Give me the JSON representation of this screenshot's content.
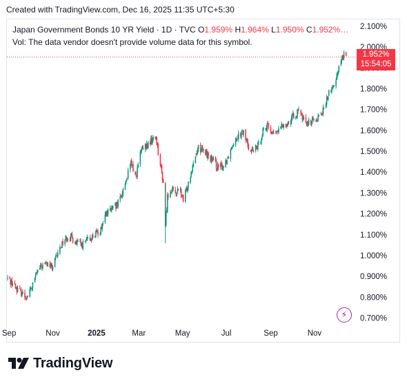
{
  "header": {
    "created_text": "Created with TradingView.com, Dec 16, 2025 11:35 UTC+5:30"
  },
  "legend": {
    "title": "Japan Government Bonds 10 YR Yield · 1D · TVC",
    "o_label": "O",
    "o_value": "1.959%",
    "h_label": "H",
    "h_value": "1.964%",
    "l_label": "L",
    "l_value": "1.950%",
    "c_label": "C",
    "c_value": "1.952%…",
    "volume_note": "Vol: The data vendor doesn't provide volume data for this symbol."
  },
  "price_tag": {
    "price": "1.952%",
    "countdown": "15:54:05"
  },
  "brand": {
    "name": "TradingView"
  },
  "icons": {
    "bolt": "lightning-icon",
    "logo": "tradingview-logo-icon"
  },
  "colors": {
    "up": "#089981",
    "down": "#f23645",
    "axis_text": "#131722",
    "accent": "#9c27b0"
  },
  "chart_data": {
    "type": "candlestick",
    "y_unit": "%",
    "ylim": [
      0.665,
      2.135
    ],
    "y_ticks": [
      "2.100%",
      "2.000%",
      "1.900%",
      "1.800%",
      "1.700%",
      "1.600%",
      "1.500%",
      "1.400%",
      "1.300%",
      "1.200%",
      "1.100%",
      "1.000%",
      "0.900%",
      "0.800%",
      "0.700%"
    ],
    "y_tick_values": [
      2.1,
      2.0,
      1.9,
      1.8,
      1.7,
      1.6,
      1.5,
      1.4,
      1.3,
      1.2,
      1.1,
      1.0,
      0.9,
      0.8,
      0.7
    ],
    "x_ticks": [
      {
        "label": "Sep",
        "date": "2024-09-01",
        "bold": false
      },
      {
        "label": "Nov",
        "date": "2024-11-01",
        "bold": false
      },
      {
        "label": "2025",
        "date": "2025-01-01",
        "bold": true
      },
      {
        "label": "Mar",
        "date": "2025-03-01",
        "bold": false
      },
      {
        "label": "May",
        "date": "2025-05-01",
        "bold": false
      },
      {
        "label": "Jul",
        "date": "2025-07-01",
        "bold": false
      },
      {
        "label": "Sep",
        "date": "2025-09-01",
        "bold": false
      },
      {
        "label": "Nov",
        "date": "2025-11-01",
        "bold": false
      }
    ],
    "last_price": 1.952,
    "series": [
      {
        "date": "2024-08-30",
        "close": 0.89
      },
      {
        "date": "2024-09-05",
        "close": 0.87
      },
      {
        "date": "2024-09-12",
        "close": 0.84
      },
      {
        "date": "2024-09-19",
        "close": 0.82
      },
      {
        "date": "2024-09-26",
        "close": 0.8
      },
      {
        "date": "2024-10-03",
        "close": 0.85
      },
      {
        "date": "2024-10-10",
        "close": 0.92
      },
      {
        "date": "2024-10-17",
        "close": 0.95
      },
      {
        "date": "2024-10-24",
        "close": 0.96
      },
      {
        "date": "2024-10-31",
        "close": 0.94
      },
      {
        "date": "2024-11-07",
        "close": 1.0
      },
      {
        "date": "2024-11-14",
        "close": 1.06
      },
      {
        "date": "2024-11-21",
        "close": 1.09
      },
      {
        "date": "2024-11-28",
        "close": 1.08
      },
      {
        "date": "2024-12-05",
        "close": 1.06
      },
      {
        "date": "2024-12-12",
        "close": 1.05
      },
      {
        "date": "2024-12-19",
        "close": 1.07
      },
      {
        "date": "2024-12-26",
        "close": 1.09
      },
      {
        "date": "2025-01-06",
        "close": 1.12
      },
      {
        "date": "2025-01-14",
        "close": 1.2
      },
      {
        "date": "2025-01-21",
        "close": 1.22
      },
      {
        "date": "2025-01-28",
        "close": 1.23
      },
      {
        "date": "2025-02-04",
        "close": 1.28
      },
      {
        "date": "2025-02-11",
        "close": 1.36
      },
      {
        "date": "2025-02-18",
        "close": 1.44
      },
      {
        "date": "2025-02-25",
        "close": 1.38
      },
      {
        "date": "2025-03-04",
        "close": 1.5
      },
      {
        "date": "2025-03-11",
        "close": 1.52
      },
      {
        "date": "2025-03-18",
        "close": 1.55
      },
      {
        "date": "2025-03-25",
        "close": 1.57
      },
      {
        "date": "2025-03-28",
        "close": 1.5
      },
      {
        "date": "2025-04-04",
        "close": 1.35
      },
      {
        "date": "2025-04-07",
        "close": 1.15
      },
      {
        "date": "2025-04-10",
        "close": 1.28
      },
      {
        "date": "2025-04-14",
        "close": 1.32
      },
      {
        "date": "2025-04-21",
        "close": 1.3
      },
      {
        "date": "2025-04-28",
        "close": 1.31
      },
      {
        "date": "2025-05-02",
        "close": 1.26
      },
      {
        "date": "2025-05-09",
        "close": 1.35
      },
      {
        "date": "2025-05-16",
        "close": 1.45
      },
      {
        "date": "2025-05-23",
        "close": 1.52
      },
      {
        "date": "2025-05-30",
        "close": 1.5
      },
      {
        "date": "2025-06-06",
        "close": 1.48
      },
      {
        "date": "2025-06-13",
        "close": 1.45
      },
      {
        "date": "2025-06-20",
        "close": 1.42
      },
      {
        "date": "2025-06-27",
        "close": 1.43
      },
      {
        "date": "2025-07-04",
        "close": 1.48
      },
      {
        "date": "2025-07-11",
        "close": 1.55
      },
      {
        "date": "2025-07-18",
        "close": 1.58
      },
      {
        "date": "2025-07-25",
        "close": 1.59
      },
      {
        "date": "2025-08-01",
        "close": 1.52
      },
      {
        "date": "2025-08-08",
        "close": 1.5
      },
      {
        "date": "2025-08-15",
        "close": 1.53
      },
      {
        "date": "2025-08-22",
        "close": 1.61
      },
      {
        "date": "2025-08-29",
        "close": 1.62
      },
      {
        "date": "2025-09-05",
        "close": 1.58
      },
      {
        "date": "2025-09-12",
        "close": 1.6
      },
      {
        "date": "2025-09-19",
        "close": 1.63
      },
      {
        "date": "2025-09-26",
        "close": 1.64
      },
      {
        "date": "2025-10-03",
        "close": 1.67
      },
      {
        "date": "2025-10-10",
        "close": 1.69
      },
      {
        "date": "2025-10-17",
        "close": 1.65
      },
      {
        "date": "2025-10-24",
        "close": 1.64
      },
      {
        "date": "2025-10-31",
        "close": 1.65
      },
      {
        "date": "2025-11-07",
        "close": 1.67
      },
      {
        "date": "2025-11-14",
        "close": 1.7
      },
      {
        "date": "2025-11-21",
        "close": 1.78
      },
      {
        "date": "2025-11-28",
        "close": 1.81
      },
      {
        "date": "2025-12-03",
        "close": 1.88
      },
      {
        "date": "2025-12-09",
        "close": 1.95
      },
      {
        "date": "2025-12-12",
        "close": 1.96
      },
      {
        "date": "2025-12-16",
        "close": 1.952
      }
    ]
  }
}
